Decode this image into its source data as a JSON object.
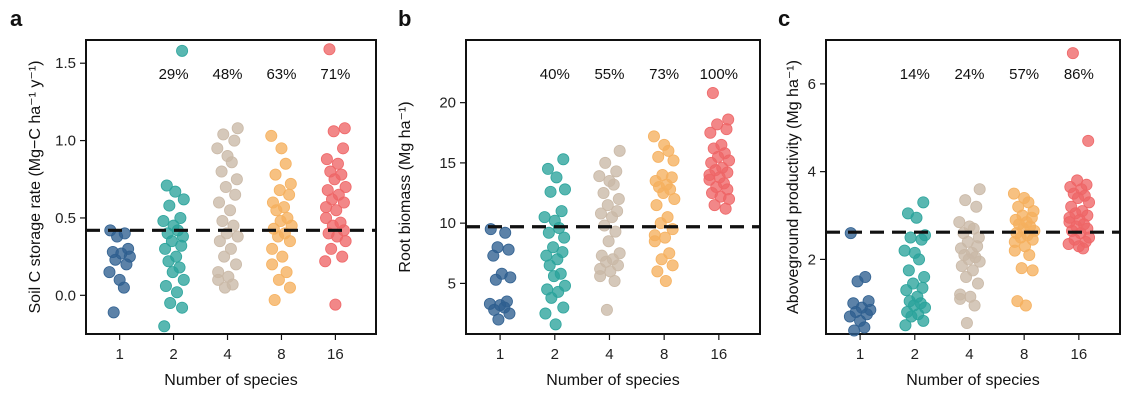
{
  "colors": {
    "1": "#2e5f8f",
    "2": "#2aa39b",
    "4": "#c9b8a6",
    "8": "#f5b05e",
    "16": "#ee6566"
  },
  "chart_data": [
    {
      "type": "scatter",
      "panel_label": "a",
      "xlabel": "Number of species",
      "ylabel": "Soil C storage rate (Mg−C ha⁻¹ y⁻¹)",
      "categories": [
        "1",
        "2",
        "4",
        "8",
        "16"
      ],
      "yticks": [
        0.0,
        0.5,
        1.0,
        1.5
      ],
      "ytick_labels": [
        "0.0",
        "0.5",
        "1.0",
        "1.5"
      ],
      "ylim": [
        -0.25,
        1.65
      ],
      "reference_line": 0.42,
      "annotations": [
        {
          "category": "2",
          "text": "29%"
        },
        {
          "category": "4",
          "text": "48%"
        },
        {
          "category": "8",
          "text": "63%"
        },
        {
          "category": "16",
          "text": "71%"
        }
      ],
      "series": [
        {
          "category": "1",
          "values": [
            0.42,
            0.4,
            0.38,
            0.3,
            0.28,
            0.27,
            0.25,
            0.23,
            0.2,
            0.15,
            0.1,
            0.05,
            -0.11
          ]
        },
        {
          "category": "2",
          "values": [
            1.58,
            0.71,
            0.67,
            0.62,
            0.58,
            0.5,
            0.48,
            0.45,
            0.42,
            0.4,
            0.38,
            0.35,
            0.32,
            0.3,
            0.25,
            0.22,
            0.18,
            0.15,
            0.1,
            0.06,
            0.02,
            -0.05,
            -0.08,
            -0.2
          ]
        },
        {
          "category": "4",
          "values": [
            1.08,
            1.04,
            1.0,
            0.95,
            0.9,
            0.86,
            0.8,
            0.75,
            0.7,
            0.65,
            0.6,
            0.55,
            0.48,
            0.45,
            0.4,
            0.38,
            0.35,
            0.3,
            0.25,
            0.2,
            0.15,
            0.12,
            0.1,
            0.07,
            0.05
          ]
        },
        {
          "category": "8",
          "values": [
            1.03,
            0.95,
            0.85,
            0.78,
            0.72,
            0.68,
            0.65,
            0.6,
            0.57,
            0.55,
            0.5,
            0.48,
            0.45,
            0.43,
            0.4,
            0.38,
            0.35,
            0.3,
            0.25,
            0.2,
            0.15,
            0.1,
            0.05,
            -0.03
          ]
        },
        {
          "category": "16",
          "values": [
            1.59,
            1.08,
            1.06,
            0.95,
            0.88,
            0.85,
            0.8,
            0.78,
            0.75,
            0.7,
            0.68,
            0.65,
            0.62,
            0.6,
            0.57,
            0.55,
            0.5,
            0.47,
            0.45,
            0.42,
            0.4,
            0.38,
            0.35,
            0.3,
            0.25,
            0.22,
            -0.06
          ]
        }
      ]
    },
    {
      "type": "scatter",
      "panel_label": "b",
      "xlabel": "Number of species",
      "ylabel": "Root biomass (Mg ha⁻¹)",
      "categories": [
        "1",
        "2",
        "4",
        "8",
        "16"
      ],
      "yticks": [
        5,
        10,
        15,
        20
      ],
      "ytick_labels": [
        "5",
        "10",
        "15",
        "20"
      ],
      "ylim": [
        0.8,
        25.2
      ],
      "reference_line": 9.7,
      "annotations": [
        {
          "category": "2",
          "text": "40%"
        },
        {
          "category": "4",
          "text": "55%"
        },
        {
          "category": "8",
          "text": "73%"
        },
        {
          "category": "16",
          "text": "100%"
        }
      ],
      "series": [
        {
          "category": "1",
          "values": [
            9.5,
            9.2,
            8.0,
            7.8,
            7.3,
            5.8,
            5.5,
            5.3,
            3.5,
            3.3,
            3.2,
            3.0,
            2.8,
            2.5,
            2.0
          ]
        },
        {
          "category": "2",
          "values": [
            15.3,
            14.5,
            13.8,
            12.8,
            12.6,
            11.0,
            10.5,
            10.2,
            9.6,
            9.2,
            8.8,
            8.0,
            7.6,
            7.3,
            7.0,
            6.5,
            5.8,
            5.6,
            4.8,
            4.5,
            4.3,
            3.8,
            3.0,
            2.5,
            1.6
          ]
        },
        {
          "category": "4",
          "values": [
            16.0,
            15.0,
            14.3,
            13.9,
            13.5,
            13.2,
            12.5,
            12.0,
            11.5,
            11.0,
            10.8,
            10.5,
            9.8,
            9.3,
            8.5,
            7.5,
            7.3,
            7.0,
            6.8,
            6.5,
            6.2,
            6.0,
            5.6,
            5.2,
            2.8
          ]
        },
        {
          "category": "8",
          "values": [
            17.2,
            16.5,
            16.0,
            15.5,
            15.2,
            14.0,
            13.8,
            13.5,
            13.2,
            13.0,
            12.8,
            12.5,
            12.0,
            11.5,
            10.5,
            10.0,
            9.5,
            9.0,
            8.8,
            8.5,
            7.5,
            7.0,
            6.5,
            6.0,
            5.2
          ]
        },
        {
          "category": "16",
          "values": [
            20.8,
            18.6,
            18.2,
            17.8,
            17.5,
            16.5,
            16.2,
            15.8,
            15.5,
            15.2,
            15.0,
            14.6,
            14.4,
            14.2,
            14.0,
            13.8,
            13.6,
            13.3,
            13.0,
            12.8,
            12.5,
            12.2,
            12.0,
            11.5,
            11.2
          ]
        }
      ]
    },
    {
      "type": "scatter",
      "panel_label": "c",
      "xlabel": "Number of species",
      "ylabel": "Aboveground productivity (Mg ha⁻¹)",
      "categories": [
        "1",
        "2",
        "4",
        "8",
        "16"
      ],
      "yticks": [
        2,
        4,
        6
      ],
      "ytick_labels": [
        "2",
        "4",
        "6"
      ],
      "ylim": [
        0.3,
        7.0
      ],
      "reference_line": 2.62,
      "annotations": [
        {
          "category": "2",
          "text": "14%"
        },
        {
          "category": "4",
          "text": "24%"
        },
        {
          "category": "8",
          "text": "57%"
        },
        {
          "category": "16",
          "text": "86%"
        }
      ],
      "series": [
        {
          "category": "1",
          "values": [
            2.6,
            1.6,
            1.5,
            1.05,
            1.0,
            0.9,
            0.85,
            0.8,
            0.75,
            0.7,
            0.6,
            0.45,
            0.38
          ]
        },
        {
          "category": "2",
          "values": [
            3.3,
            3.05,
            2.95,
            2.55,
            2.5,
            2.45,
            2.2,
            2.15,
            2.0,
            1.75,
            1.6,
            1.45,
            1.35,
            1.3,
            1.15,
            1.05,
            1.0,
            0.95,
            0.9,
            0.8,
            0.75,
            0.7,
            0.6,
            0.5
          ]
        },
        {
          "category": "4",
          "values": [
            3.6,
            3.35,
            3.2,
            2.85,
            2.75,
            2.7,
            2.6,
            2.5,
            2.4,
            2.3,
            2.25,
            2.15,
            2.1,
            2.05,
            2.0,
            1.95,
            1.85,
            1.75,
            1.6,
            1.45,
            1.2,
            1.15,
            1.1,
            0.95,
            0.55
          ]
        },
        {
          "category": "8",
          "values": [
            3.5,
            3.4,
            3.3,
            3.2,
            3.1,
            3.0,
            2.95,
            2.9,
            2.85,
            2.8,
            2.75,
            2.7,
            2.65,
            2.6,
            2.55,
            2.5,
            2.45,
            2.4,
            2.3,
            2.2,
            2.1,
            1.8,
            1.75,
            1.05,
            0.95
          ]
        },
        {
          "category": "16",
          "values": [
            6.7,
            4.7,
            3.8,
            3.7,
            3.65,
            3.6,
            3.5,
            3.45,
            3.4,
            3.3,
            3.2,
            3.1,
            3.05,
            3.0,
            2.95,
            2.9,
            2.85,
            2.8,
            2.75,
            2.7,
            2.65,
            2.6,
            2.5,
            2.45,
            2.4,
            2.35,
            2.3,
            2.25
          ]
        }
      ]
    }
  ]
}
